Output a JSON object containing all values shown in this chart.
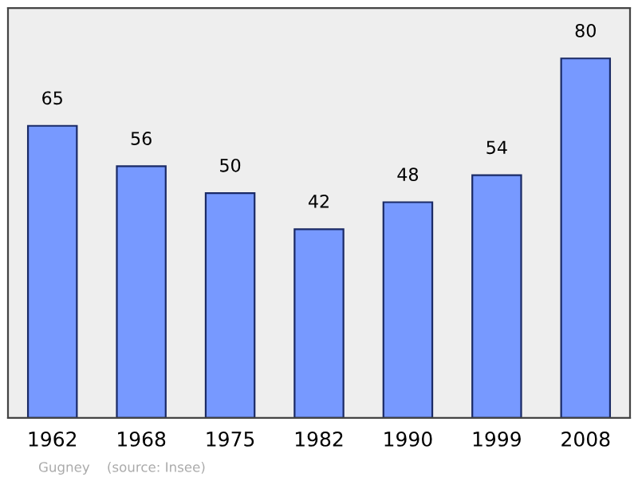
{
  "chart_data": {
    "type": "bar",
    "categories": [
      "1962",
      "1968",
      "1975",
      "1982",
      "1990",
      "1999",
      "2008"
    ],
    "values": [
      65,
      56,
      50,
      42,
      48,
      54,
      80
    ],
    "color": "#7799ff",
    "data_labels": true,
    "grid": false,
    "legend": false,
    "annotations": [
      "Gugney    (source: Insee)"
    ]
  }
}
